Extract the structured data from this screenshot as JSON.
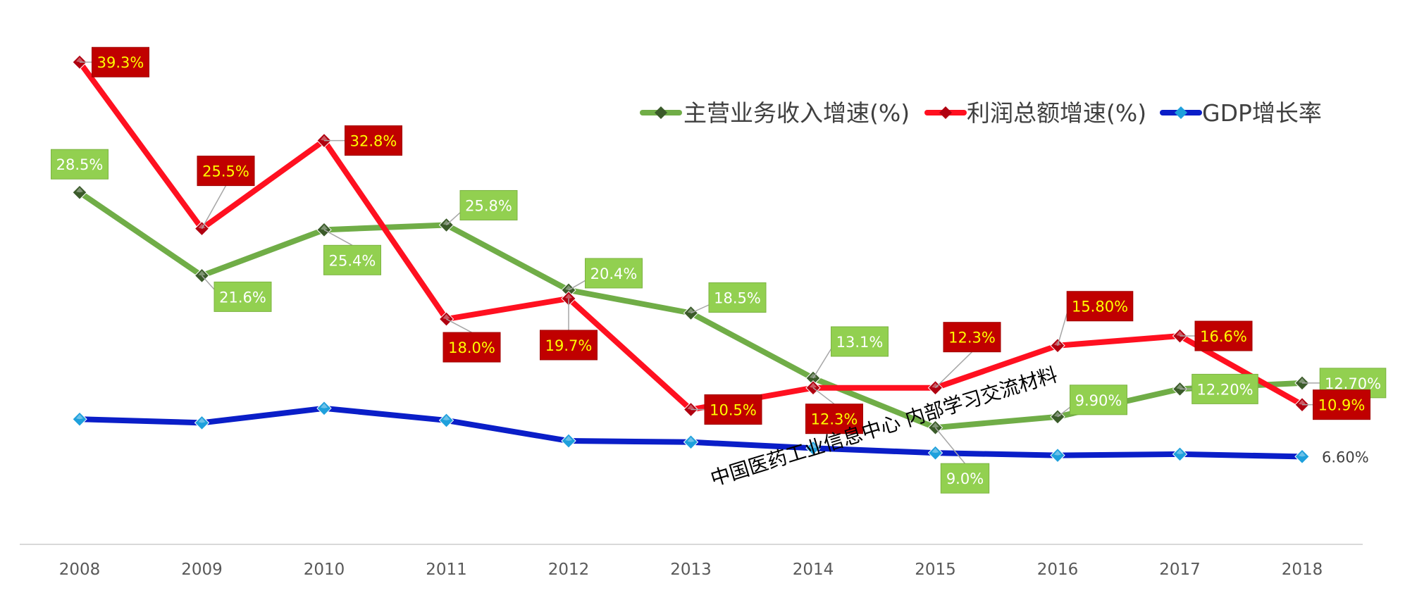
{
  "chart_data": {
    "type": "line",
    "title": "",
    "xlabel": "",
    "ylabel": "",
    "categories": [
      "2008",
      "2009",
      "2010",
      "2011",
      "2012",
      "2013",
      "2014",
      "2015",
      "2016",
      "2017",
      "2018"
    ],
    "ylim": [
      -5,
      42
    ],
    "grid": false,
    "legend_position": "top-right",
    "series": [
      {
        "name": "主营业务收入增速(%)",
        "color": "#70AD47",
        "marker_color": "#3B5B2A",
        "label_fill": "#92D050",
        "label_text_color": "#FFFFFF",
        "values": [
          28.5,
          21.6,
          25.4,
          25.8,
          20.4,
          18.5,
          13.1,
          9.0,
          9.9,
          12.2,
          12.7
        ],
        "labels": [
          "28.5%",
          "21.6%",
          "25.4%",
          "25.8%",
          "20.4%",
          "18.5%",
          "13.1%",
          "9.0%",
          "9.90%",
          "12.20%",
          "12.70%"
        ]
      },
      {
        "name": "利润总额增速(%)",
        "color": "#FF1020",
        "marker_color": "#B00010",
        "label_fill": "#C00000",
        "label_text_color": "#FFFF00",
        "values": [
          39.3,
          25.5,
          32.8,
          18.0,
          19.7,
          10.5,
          12.3,
          12.3,
          15.8,
          16.6,
          10.9
        ],
        "labels": [
          "39.3%",
          "25.5%",
          "32.8%",
          "18.0%",
          "19.7%",
          "10.5%",
          "12.3%",
          "12.3%",
          "15.80%",
          "16.6%",
          "10.9%"
        ]
      },
      {
        "name": "GDP增长率",
        "color": "#0A1EC8",
        "marker_color": "#1EA0DC",
        "values": [
          9.7,
          9.4,
          10.6,
          9.6,
          7.9,
          7.8,
          7.3,
          6.9,
          6.7,
          6.8,
          6.6
        ],
        "labels": [
          "",
          "",
          "",
          "",
          "",
          "",
          "",
          "",
          "",
          "",
          "6.60%"
        ]
      }
    ],
    "watermark": "中国医药工业信息中心  内部学习交流材料"
  }
}
